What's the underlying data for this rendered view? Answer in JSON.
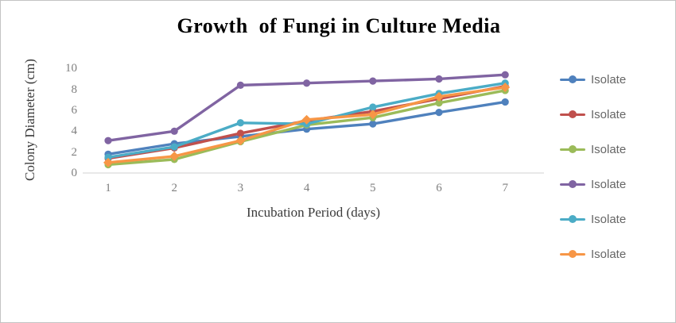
{
  "window": {
    "background": "#ffffff",
    "border_color": "#c3c3c3"
  },
  "chart_data": {
    "type": "line",
    "title": "Growth  of Fungi in Culture Media",
    "xlabel": "Incubation Period (days)",
    "ylabel": "Colony Diameter (cm)",
    "x": [
      1,
      2,
      3,
      4,
      5,
      6,
      7
    ],
    "yticks": [
      0,
      2,
      4,
      6,
      8,
      10
    ],
    "ylim": [
      0,
      10
    ],
    "grid": false,
    "legend_position": "right",
    "series": [
      {
        "name": "Isolate",
        "color": "#4F81BD",
        "marker": "circle",
        "values": [
          1.8,
          2.8,
          3.5,
          4.2,
          4.7,
          5.8,
          6.8
        ]
      },
      {
        "name": "Isolate",
        "color": "#C0504D",
        "marker": "circle",
        "values": [
          1.4,
          2.4,
          3.8,
          5.0,
          5.9,
          7.1,
          8.3
        ]
      },
      {
        "name": "Isolate",
        "color": "#9BBB59",
        "marker": "circle",
        "values": [
          0.8,
          1.3,
          3.0,
          4.6,
          5.3,
          6.7,
          7.9
        ]
      },
      {
        "name": "Isolate",
        "color": "#8064A2",
        "marker": "circle",
        "values": [
          3.1,
          4.0,
          8.4,
          8.6,
          8.8,
          9.0,
          9.4
        ]
      },
      {
        "name": "Isolate",
        "color": "#4BACC6",
        "marker": "circle",
        "values": [
          1.5,
          2.5,
          4.8,
          4.7,
          6.3,
          7.6,
          8.6
        ]
      },
      {
        "name": "Isolate",
        "color": "#F79646",
        "marker": "diamond",
        "values": [
          1.0,
          1.6,
          3.1,
          5.1,
          5.6,
          7.3,
          8.2
        ]
      }
    ],
    "colors": {
      "axis_line": "#d9d9d9",
      "tick_label": "#7f7f7f",
      "axis_title": "#3a3a3a",
      "title": "#000000",
      "legend_label": "#666666"
    }
  }
}
